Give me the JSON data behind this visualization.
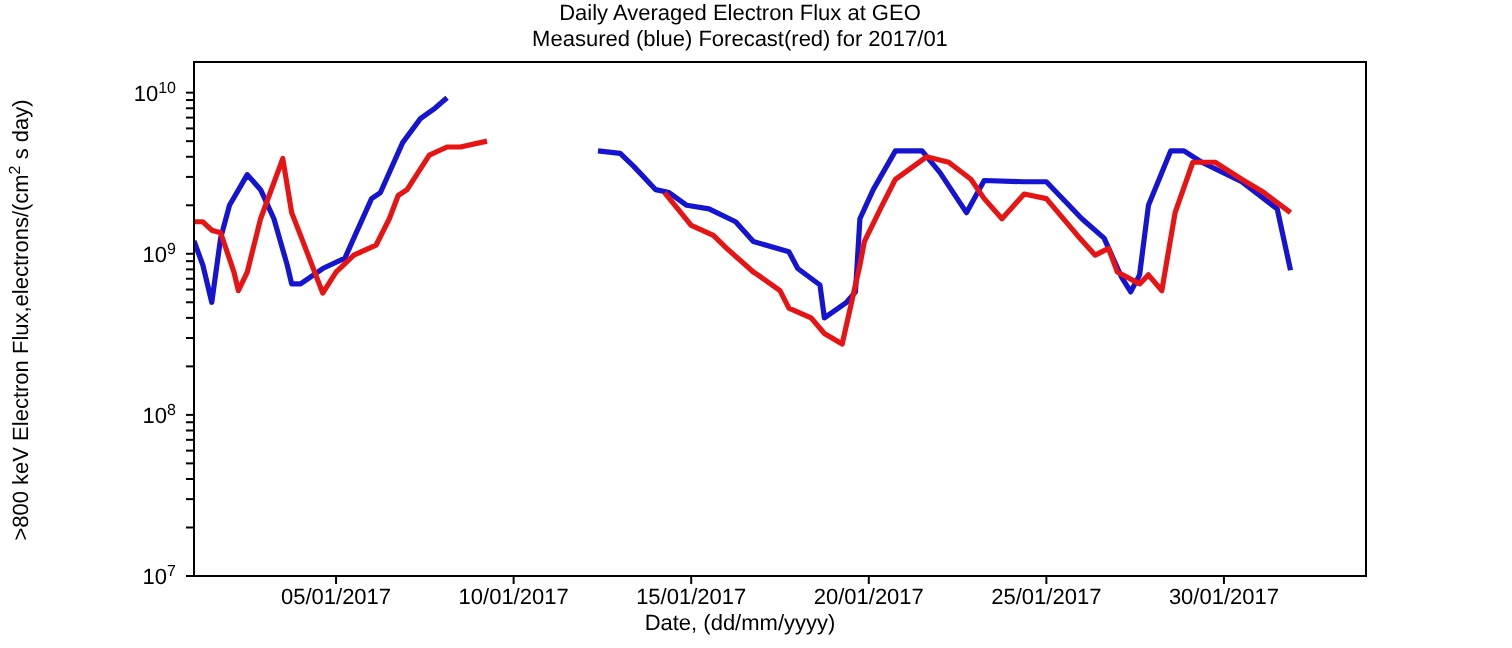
{
  "chart_data": {
    "type": "line",
    "title": "Daily Averaged Electron Flux at GEO",
    "subtitle": "Measured (blue) Forecast(red) for 2017/01",
    "xlabel": "Date, (dd/mm/yyyy)",
    "ylabel": ">800 keV Electron Flux,electrons/(cm$^{2}$ s day)",
    "log": "y",
    "marker": "none",
    "line_style": "solid",
    "xlim": [
      "2017-01-01",
      "2017-02-03"
    ],
    "xticks": [
      {
        "value": "2017-01-05",
        "label": "05/01/2017"
      },
      {
        "value": "2017-01-10",
        "label": "10/01/2017"
      },
      {
        "value": "2017-01-15",
        "label": "15/01/2017"
      },
      {
        "value": "2017-01-20",
        "label": "20/01/2017"
      },
      {
        "value": "2017-01-25",
        "label": "25/01/2017"
      },
      {
        "value": "2017-01-30",
        "label": "30/01/2017"
      }
    ],
    "ylim": [
      10000000,
      15500000000
    ],
    "yticks": [
      {
        "value": 10000000,
        "label": "10$^{7}$"
      },
      {
        "value": 20000000,
        "label": null
      },
      {
        "value": 30000000,
        "label": null
      },
      {
        "value": 40000000,
        "label": null
      },
      {
        "value": 50000000,
        "label": null
      },
      {
        "value": 60000000,
        "label": null
      },
      {
        "value": 70000000,
        "label": null
      },
      {
        "value": 80000000,
        "label": null
      },
      {
        "value": 90000000,
        "label": null
      },
      {
        "value": 100000000,
        "label": "10$^{8}$"
      },
      {
        "value": 200000000,
        "label": null
      },
      {
        "value": 300000000,
        "label": null
      },
      {
        "value": 400000000,
        "label": null
      },
      {
        "value": 500000000,
        "label": null
      },
      {
        "value": 600000000,
        "label": null
      },
      {
        "value": 700000000,
        "label": null
      },
      {
        "value": 800000000,
        "label": null
      },
      {
        "value": 900000000,
        "label": null
      },
      {
        "value": 1000000000,
        "label": "10$^{9}$"
      },
      {
        "value": 2000000000,
        "label": null
      },
      {
        "value": 3000000000,
        "label": null
      },
      {
        "value": 4000000000,
        "label": null
      },
      {
        "value": 5000000000,
        "label": null
      },
      {
        "value": 6000000000,
        "label": null
      },
      {
        "value": 7000000000,
        "label": null
      },
      {
        "value": 8000000000,
        "label": null
      },
      {
        "value": 9000000000,
        "label": null
      },
      {
        "value": 10000000000,
        "label": "10$^{10}$"
      }
    ],
    "series": [
      {
        "color": "#1414d2",
        "x": [
          "2017-01-01T00:00",
          "2017-01-01T06:00",
          "2017-01-01T12:00",
          "2017-01-01T18:00",
          "2017-01-02T00:00",
          "2017-01-02T12:00",
          "2017-01-02T21:00",
          "2017-01-03T06:00",
          "2017-01-03T15:00",
          "2017-01-03T18:00",
          "2017-01-04T00:00",
          "2017-01-04T15:00",
          "2017-01-05T06:00",
          "2017-01-05T12:00",
          "2017-01-06T00:00",
          "2017-01-06T06:00",
          "2017-01-06T21:00",
          "2017-01-07T09:00",
          "2017-01-07T18:00",
          "2017-01-08T03:00",
          "2017-01-10T00:00",
          "2017-01-12T09:00",
          "2017-01-13T00:00",
          "2017-01-13T09:00",
          "2017-01-14T00:00",
          "2017-01-14T09:00",
          "2017-01-14T21:00",
          "2017-01-15T12:00",
          "2017-01-16T06:00",
          "2017-01-16T18:00",
          "2017-01-17T18:00",
          "2017-01-18T00:00",
          "2017-01-18T15:00",
          "2017-01-18T18:00",
          "2017-01-19T09:00",
          "2017-01-19T15:00",
          "2017-01-19T18:00",
          "2017-01-20T03:00",
          "2017-01-20T18:00",
          "2017-01-21T12:00",
          "2017-01-22T00:00",
          "2017-01-22T18:00",
          "2017-01-23T06:00",
          "2017-01-24T09:00",
          "2017-01-25T00:00",
          "2017-01-26T00:00",
          "2017-01-26T15:00",
          "2017-01-27T03:00",
          "2017-01-27T09:00",
          "2017-01-27T15:00",
          "2017-01-27T21:00",
          "2017-01-28T12:00",
          "2017-01-28T21:00",
          "2017-01-29T09:00",
          "2017-01-30T12:00",
          "2017-01-31T12:00",
          "2017-01-31T21:00"
        ],
        "values": [
          1200000000,
          850000000,
          500000000,
          1250000000,
          2000000000,
          3100000000,
          2500000000,
          1650000000,
          850000000,
          650000000,
          650000000,
          810000000,
          940000000,
          1250000000,
          2200000000,
          2400000000,
          4900000000,
          6900000000,
          7900000000,
          9300000000,
          null,
          4350000000,
          4200000000,
          3500000000,
          2500000000,
          2400000000,
          2000000000,
          1900000000,
          1580000000,
          1190000000,
          1030000000,
          810000000,
          640000000,
          400000000,
          500000000,
          580000000,
          1650000000,
          2500000000,
          4350000000,
          4350000000,
          3200000000,
          1800000000,
          2850000000,
          2800000000,
          2800000000,
          1650000000,
          1250000000,
          710000000,
          580000000,
          740000000,
          2000000000,
          4350000000,
          4350000000,
          3700000000,
          2800000000,
          1900000000,
          790000000
        ]
      },
      {
        "color": "#e81414",
        "x": [
          "2017-01-01T00:00",
          "2017-01-01T06:00",
          "2017-01-01T12:00",
          "2017-01-01T18:00",
          "2017-01-02T03:00",
          "2017-01-02T06:00",
          "2017-01-02T12:00",
          "2017-01-02T21:00",
          "2017-01-03T12:00",
          "2017-01-03T18:00",
          "2017-01-04T00:00",
          "2017-01-04T15:00",
          "2017-01-05T00:00",
          "2017-01-05T12:00",
          "2017-01-06T03:00",
          "2017-01-06T12:00",
          "2017-01-06T18:00",
          "2017-01-07T00:00",
          "2017-01-07T15:00",
          "2017-01-08T03:00",
          "2017-01-08T12:00",
          "2017-01-09T06:00",
          "2017-01-11T00:00",
          "2017-01-14T06:00",
          "2017-01-15T00:00",
          "2017-01-15T15:00",
          "2017-01-16T00:00",
          "2017-01-16T18:00",
          "2017-01-16T21:00",
          "2017-01-17T12:00",
          "2017-01-17T18:00",
          "2017-01-18T09:00",
          "2017-01-18T18:00",
          "2017-01-19T06:00",
          "2017-01-19T18:00",
          "2017-01-19T21:00",
          "2017-01-20T09:00",
          "2017-01-20T18:00",
          "2017-01-21T15:00",
          "2017-01-22T06:00",
          "2017-01-22T21:00",
          "2017-01-23T06:00",
          "2017-01-23T18:00",
          "2017-01-24T09:00",
          "2017-01-25T00:00",
          "2017-01-25T21:00",
          "2017-01-26T09:00",
          "2017-01-26T18:00",
          "2017-01-27T00:00",
          "2017-01-27T15:00",
          "2017-01-27T21:00",
          "2017-01-28T06:00",
          "2017-01-28T15:00",
          "2017-01-29T03:00",
          "2017-01-29T18:00",
          "2017-01-30T12:00",
          "2017-01-31T03:00",
          "2017-01-31T21:00"
        ],
        "values": [
          1580000000,
          1580000000,
          1400000000,
          1350000000,
          770000000,
          590000000,
          770000000,
          1650000000,
          3900000000,
          1800000000,
          1300000000,
          570000000,
          770000000,
          980000000,
          1130000000,
          1650000000,
          2300000000,
          2500000000,
          4100000000,
          4600000000,
          4600000000,
          5000000000,
          null,
          2400000000,
          1500000000,
          1300000000,
          1080000000,
          770000000,
          740000000,
          590000000,
          460000000,
          400000000,
          320000000,
          275000000,
          850000000,
          1190000000,
          2000000000,
          2900000000,
          4000000000,
          3700000000,
          2900000000,
          2200000000,
          1650000000,
          2350000000,
          2200000000,
          1300000000,
          980000000,
          1080000000,
          770000000,
          650000000,
          740000000,
          590000000,
          1800000000,
          3700000000,
          3700000000,
          2900000000,
          2400000000,
          1800000000
        ]
      }
    ]
  }
}
